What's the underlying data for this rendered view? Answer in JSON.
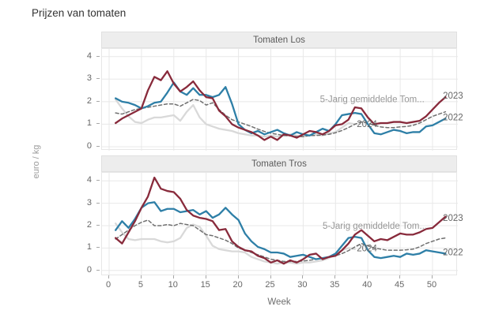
{
  "title": "Prijzen van tomaten",
  "axes": {
    "x_label": "Week",
    "y_label": "euro / kg",
    "x_ticks": [
      0,
      5,
      10,
      15,
      20,
      25,
      30,
      35,
      40,
      45,
      50
    ],
    "y_ticks": [
      0,
      1,
      2,
      3,
      4
    ],
    "xlim": [
      0,
      54
    ],
    "ylim": [
      0,
      4.3
    ],
    "grid": "major-only"
  },
  "colors": {
    "y2023": "#882A3B",
    "y2022": "#2E7FA7",
    "y2024": "#D9D9D9",
    "avg5": "#707070",
    "grid": "#E8E8E8",
    "annotation": "#666666",
    "annotation_muted": "#979797"
  },
  "chart_data": [
    {
      "type": "line",
      "facet": "Tomaten Los",
      "x_unit": "week",
      "weeks_start": 1,
      "series": [
        {
          "name": "2024",
          "color_key": "y2024",
          "style": "solid",
          "values": [
            2.1,
            1.7,
            1.35,
            1.1,
            1.05,
            1.2,
            1.3,
            1.3,
            1.35,
            1.4,
            1.15,
            1.55,
            1.85,
            1.3,
            1.0,
            0.9,
            0.8,
            0.75,
            0.7,
            0.6,
            0.55,
            0.5,
            0.5,
            0.45,
            0.5,
            0.45,
            0.5,
            0.55,
            0.5,
            0.45,
            0.5,
            0.55,
            0.5,
            0.6,
            0.65,
            0.85,
            1.05,
            1.0
          ]
        },
        {
          "name": "5-Jarig gemiddelde Tomaten Los",
          "color_key": "avg5",
          "style": "dashed",
          "values": [
            1.5,
            1.45,
            1.55,
            1.65,
            1.7,
            1.75,
            1.8,
            1.85,
            1.9,
            1.9,
            1.8,
            1.95,
            2.1,
            2.05,
            1.85,
            1.95,
            1.65,
            1.4,
            1.2,
            1.1,
            1.0,
            0.9,
            0.78,
            0.68,
            0.6,
            0.55,
            0.5,
            0.48,
            0.45,
            0.45,
            0.5,
            0.5,
            0.52,
            0.55,
            0.62,
            0.72,
            0.85,
            1.0,
            1.1,
            1.05,
            0.95,
            0.88,
            0.85,
            0.85,
            0.88,
            0.9,
            0.95,
            1.05,
            1.2,
            1.35,
            1.45,
            1.55
          ]
        },
        {
          "name": "2022",
          "color_key": "y2022",
          "style": "solid",
          "values": [
            2.15,
            2.0,
            1.95,
            1.85,
            1.7,
            1.8,
            1.95,
            2.0,
            2.4,
            2.85,
            2.45,
            2.3,
            2.6,
            2.3,
            2.3,
            2.2,
            2.3,
            2.65,
            1.9,
            1.0,
            0.75,
            0.6,
            0.7,
            0.55,
            0.65,
            0.75,
            0.6,
            0.5,
            0.65,
            0.55,
            0.5,
            0.65,
            0.8,
            0.7,
            1.0,
            1.4,
            1.45,
            1.5,
            1.45,
            1.0,
            0.6,
            0.55,
            0.65,
            0.75,
            0.7,
            0.6,
            0.65,
            0.65,
            0.9,
            0.95,
            1.1,
            1.25
          ]
        },
        {
          "name": "2023",
          "color_key": "y2023",
          "style": "solid",
          "values": [
            1.05,
            1.25,
            1.4,
            1.55,
            1.7,
            2.5,
            3.1,
            2.95,
            3.35,
            2.8,
            2.45,
            2.65,
            2.9,
            2.5,
            2.2,
            2.15,
            1.6,
            1.35,
            1.0,
            0.85,
            0.75,
            0.65,
            0.5,
            0.3,
            0.45,
            0.3,
            0.55,
            0.5,
            0.4,
            0.55,
            0.7,
            0.65,
            0.55,
            0.7,
            0.95,
            1.0,
            1.2,
            1.75,
            1.7,
            1.3,
            1.0,
            1.05,
            1.05,
            1.1,
            1.1,
            1.05,
            1.1,
            1.15,
            1.35,
            1.65,
            1.95,
            2.2
          ]
        }
      ],
      "annotations": [
        {
          "text": "5-Jarig gemiddelde Tom...",
          "week": 32.6,
          "value": 2.12,
          "muted": true
        },
        {
          "text": "2023",
          "week": 51.6,
          "value": 2.28,
          "muted": false
        },
        {
          "text": "2022",
          "week": 51.6,
          "value": 1.32,
          "muted": false
        },
        {
          "text": "2024",
          "week": 38.3,
          "value": 1.02,
          "muted": false
        }
      ]
    },
    {
      "type": "line",
      "facet": "Tomaten Tros",
      "x_unit": "week",
      "weeks_start": 1,
      "series": [
        {
          "name": "2024",
          "color_key": "y2024",
          "style": "solid",
          "values": [
            2.1,
            1.7,
            1.4,
            1.35,
            1.4,
            1.4,
            1.4,
            1.3,
            1.25,
            1.3,
            1.45,
            1.9,
            2.05,
            1.95,
            1.55,
            1.1,
            0.95,
            0.9,
            0.85,
            0.85,
            0.8,
            0.6,
            0.5,
            0.4,
            0.35,
            0.3,
            0.35,
            0.35,
            0.3,
            0.35,
            0.35,
            0.4,
            0.45,
            0.55,
            0.75,
            0.9,
            1.0,
            0.95
          ]
        },
        {
          "name": "5-Jarig gemiddelde Tomaten Tros",
          "color_key": "avg5",
          "style": "dashed",
          "values": [
            1.4,
            1.6,
            1.8,
            2.0,
            2.15,
            2.25,
            2.0,
            2.0,
            2.05,
            2.0,
            2.1,
            2.05,
            2.0,
            1.8,
            1.6,
            1.55,
            1.45,
            1.35,
            1.2,
            1.0,
            0.9,
            0.8,
            0.7,
            0.6,
            0.5,
            0.45,
            0.4,
            0.4,
            0.4,
            0.42,
            0.45,
            0.5,
            0.55,
            0.6,
            0.65,
            0.75,
            0.88,
            1.05,
            1.2,
            1.1,
            1.0,
            0.95,
            0.9,
            0.9,
            0.9,
            0.92,
            0.95,
            1.05,
            1.2,
            1.3,
            1.4,
            1.45
          ]
        },
        {
          "name": "2022",
          "color_key": "y2022",
          "style": "solid",
          "values": [
            1.8,
            2.2,
            1.9,
            2.3,
            2.8,
            3.0,
            3.05,
            2.65,
            2.75,
            2.75,
            2.6,
            2.65,
            2.7,
            2.5,
            2.65,
            2.35,
            2.5,
            2.8,
            2.5,
            2.25,
            1.65,
            1.3,
            1.05,
            0.95,
            0.8,
            0.8,
            0.75,
            0.6,
            0.65,
            0.7,
            0.6,
            0.5,
            0.55,
            0.6,
            0.75,
            1.1,
            1.45,
            1.5,
            1.45,
            0.9,
            0.6,
            0.55,
            0.6,
            0.65,
            0.6,
            0.75,
            0.7,
            0.75,
            0.9,
            0.85,
            0.8,
            0.75
          ]
        },
        {
          "name": "2023",
          "color_key": "y2023",
          "style": "solid",
          "values": [
            1.45,
            1.2,
            1.7,
            2.2,
            2.8,
            3.3,
            4.15,
            3.65,
            3.55,
            3.5,
            3.2,
            2.7,
            2.45,
            2.35,
            2.3,
            2.2,
            1.8,
            1.85,
            1.3,
            1.05,
            0.9,
            0.85,
            0.65,
            0.55,
            0.35,
            0.45,
            0.3,
            0.45,
            0.35,
            0.5,
            0.7,
            0.75,
            0.5,
            0.6,
            0.65,
            0.9,
            1.2,
            1.6,
            1.8,
            1.55,
            1.3,
            1.4,
            1.35,
            1.5,
            1.65,
            1.6,
            1.6,
            1.7,
            1.85,
            1.9,
            2.15,
            2.4
          ]
        }
      ],
      "annotations": [
        {
          "text": "5-Jarig gemiddelde Tom...",
          "week": 33.0,
          "value": 2.0,
          "muted": true
        },
        {
          "text": "2023",
          "week": 51.6,
          "value": 2.35,
          "muted": false
        },
        {
          "text": "2022",
          "week": 51.6,
          "value": 0.82,
          "muted": false
        },
        {
          "text": "2024",
          "week": 38.3,
          "value": 1.0,
          "muted": false
        }
      ]
    }
  ]
}
